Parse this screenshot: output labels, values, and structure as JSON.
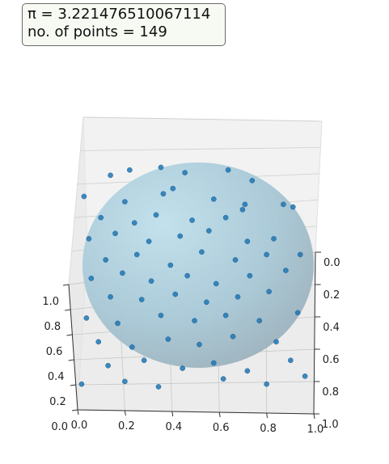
{
  "info": {
    "pi_label": "π = 3.221476510067114",
    "points_label": "no. of points = 149"
  },
  "chart_data": {
    "type": "scatter",
    "title": "",
    "xlabel": "",
    "ylabel": "",
    "zlabel": "",
    "description_values": {
      "pi_estimate": 3.221476510067114,
      "n_points": 149
    },
    "xlim": [
      0,
      1
    ],
    "ylim": [
      0,
      1
    ],
    "zlim": [
      0,
      1
    ],
    "x_ticks": [
      "0.0",
      "0.2",
      "0.4",
      "0.6",
      "0.8",
      "1.0"
    ],
    "y_ticks": [
      "0.0",
      "0.2",
      "0.4",
      "0.6",
      "0.8",
      "1.0"
    ],
    "z_ticks": [
      "0.2",
      "0.4",
      "0.6",
      "0.8",
      "1.0"
    ],
    "grid": true,
    "colors": {
      "points": "#1f77b4",
      "sphere": "#add8e6",
      "pane": "#f2f2f2"
    },
    "points": [
      [
        0.14,
        0.82
      ],
      [
        0.22,
        0.84
      ],
      [
        0.35,
        0.85
      ],
      [
        0.45,
        0.83
      ],
      [
        0.63,
        0.84
      ],
      [
        0.73,
        0.8
      ],
      [
        0.03,
        0.74
      ],
      [
        0.2,
        0.72
      ],
      [
        0.36,
        0.75
      ],
      [
        0.4,
        0.77
      ],
      [
        0.57,
        0.73
      ],
      [
        0.7,
        0.71
      ],
      [
        0.9,
        0.7
      ],
      [
        0.1,
        0.66
      ],
      [
        0.24,
        0.64
      ],
      [
        0.33,
        0.67
      ],
      [
        0.48,
        0.65
      ],
      [
        0.62,
        0.66
      ],
      [
        0.69,
        0.69
      ],
      [
        0.86,
        0.71
      ],
      [
        0.05,
        0.58
      ],
      [
        0.16,
        0.6
      ],
      [
        0.3,
        0.57
      ],
      [
        0.43,
        0.59
      ],
      [
        0.55,
        0.61
      ],
      [
        0.71,
        0.57
      ],
      [
        0.82,
        0.58
      ],
      [
        0.12,
        0.5
      ],
      [
        0.25,
        0.52
      ],
      [
        0.39,
        0.48
      ],
      [
        0.52,
        0.53
      ],
      [
        0.66,
        0.5
      ],
      [
        0.79,
        0.52
      ],
      [
        0.93,
        0.52
      ],
      [
        0.06,
        0.43
      ],
      [
        0.19,
        0.45
      ],
      [
        0.31,
        0.42
      ],
      [
        0.46,
        0.44
      ],
      [
        0.58,
        0.41
      ],
      [
        0.72,
        0.44
      ],
      [
        0.87,
        0.46
      ],
      [
        0.14,
        0.36
      ],
      [
        0.27,
        0.35
      ],
      [
        0.41,
        0.37
      ],
      [
        0.54,
        0.34
      ],
      [
        0.67,
        0.36
      ],
      [
        0.8,
        0.38
      ],
      [
        0.04,
        0.28
      ],
      [
        0.17,
        0.26
      ],
      [
        0.35,
        0.29
      ],
      [
        0.49,
        0.27
      ],
      [
        0.62,
        0.29
      ],
      [
        0.76,
        0.27
      ],
      [
        0.92,
        0.3
      ],
      [
        0.09,
        0.19
      ],
      [
        0.23,
        0.17
      ],
      [
        0.38,
        0.2
      ],
      [
        0.51,
        0.18
      ],
      [
        0.65,
        0.21
      ],
      [
        0.83,
        0.19
      ],
      [
        0.13,
        0.1
      ],
      [
        0.28,
        0.12
      ],
      [
        0.44,
        0.09
      ],
      [
        0.57,
        0.11
      ],
      [
        0.71,
        0.08
      ],
      [
        0.89,
        0.12
      ],
      [
        0.02,
        0.03
      ],
      [
        0.2,
        0.04
      ],
      [
        0.34,
        0.02
      ],
      [
        0.61,
        0.05
      ],
      [
        0.79,
        0.03
      ],
      [
        0.95,
        0.06
      ]
    ]
  }
}
